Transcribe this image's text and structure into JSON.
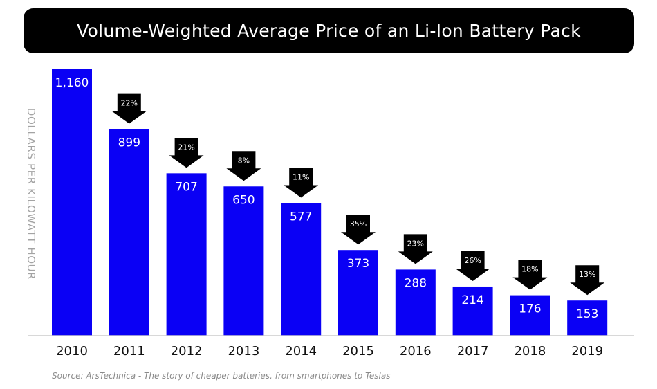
{
  "title": "Volume-Weighted Average Price of an Li-Ion Battery Pack",
  "source": "Source: ArsTechnica - The story of cheaper batteries, from smartphones to Teslas",
  "colors": {
    "bar": "#0a00f5",
    "title_bg": "#000000",
    "arrow": "#000000",
    "axis_label": "#a3a3a3",
    "baseline": "#cccccc"
  },
  "chart_data": {
    "type": "bar",
    "title": "Volume-Weighted Average Price of an Li-Ion Battery Pack",
    "xlabel": "",
    "ylabel": "DOLLARS PER KILOWATT HOUR",
    "categories": [
      "2010",
      "2011",
      "2012",
      "2013",
      "2014",
      "2015",
      "2016",
      "2017",
      "2018",
      "2019"
    ],
    "values": [
      1160,
      899,
      707,
      650,
      577,
      373,
      288,
      214,
      176,
      153
    ],
    "value_labels": [
      "1,160",
      "899",
      "707",
      "650",
      "577",
      "373",
      "288",
      "214",
      "176",
      "153"
    ],
    "decline_labels": [
      "",
      "22%",
      "21%",
      "8%",
      "11%",
      "35%",
      "23%",
      "26%",
      "18%",
      "13%"
    ],
    "ylim": [
      0,
      1160
    ],
    "grid": false,
    "legend": "none"
  }
}
